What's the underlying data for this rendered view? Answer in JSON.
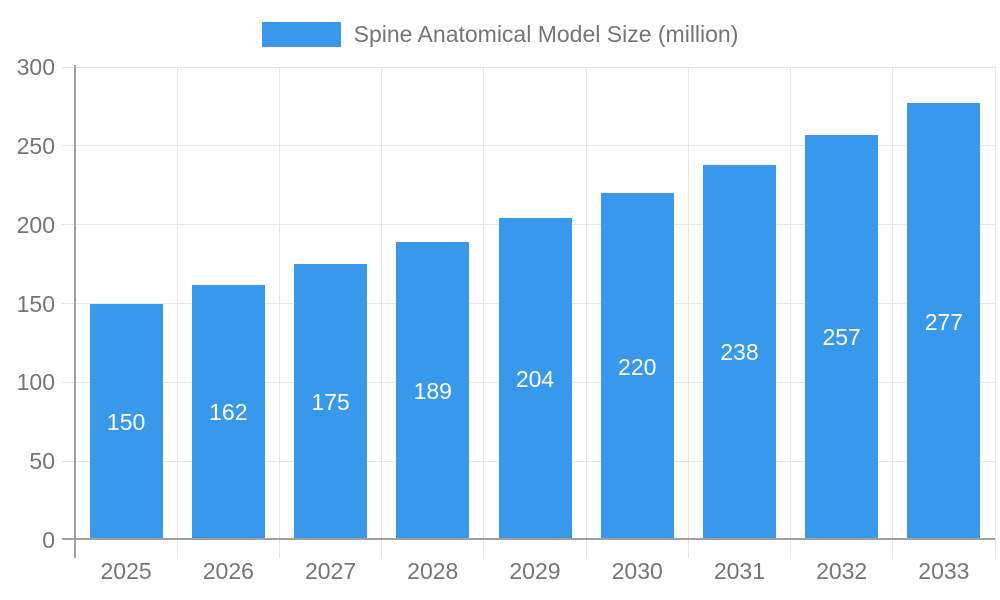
{
  "legend": {
    "label": "Spine Anatomical Model Size (million)"
  },
  "chart_data": {
    "type": "bar",
    "series_name": "Spine Anatomical Model Size (million)",
    "categories": [
      "2025",
      "2026",
      "2027",
      "2028",
      "2029",
      "2030",
      "2031",
      "2032",
      "2033"
    ],
    "values": [
      150,
      162,
      175,
      189,
      204,
      220,
      238,
      257,
      277
    ],
    "title": "",
    "xlabel": "",
    "ylabel": "",
    "ylim": [
      0,
      300
    ],
    "yticks": [
      0,
      50,
      100,
      150,
      200,
      250,
      300
    ],
    "grid": true,
    "legend_position": "top",
    "value_labels": "inside-center",
    "colors": {
      "bar": "#3898ec",
      "bar_label": "#ffffff",
      "axis": "#a0a0a0",
      "gridline": "#e6e6e6",
      "text": "#757575",
      "background": "#ffffff"
    }
  }
}
